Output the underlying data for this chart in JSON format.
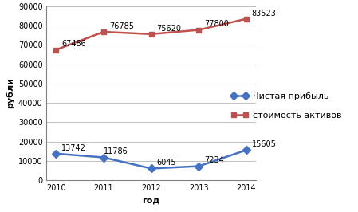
{
  "years": [
    2010,
    2011,
    2012,
    2013,
    2014
  ],
  "net_profit": [
    13742,
    11786,
    6045,
    7234,
    15605
  ],
  "asset_value": [
    67486,
    76785,
    75620,
    77800,
    83523
  ],
  "net_profit_color": "#4472C4",
  "asset_value_color": "#C0504D",
  "net_profit_label": "Чистая прибыль",
  "asset_value_label": "стоимость активов",
  "ylabel": "рубли",
  "xlabel": "год",
  "ylim": [
    0,
    90000
  ],
  "yticks": [
    0,
    10000,
    20000,
    30000,
    40000,
    50000,
    60000,
    70000,
    80000,
    90000
  ],
  "bg_color": "#FFFFFF",
  "plot_bg_color": "#FFFFFF",
  "grid_color": "#BFBFBF",
  "linewidth": 1.8,
  "markersize": 5,
  "annotation_fontsize": 7,
  "tick_fontsize": 7,
  "label_fontsize": 8,
  "legend_fontsize": 8
}
